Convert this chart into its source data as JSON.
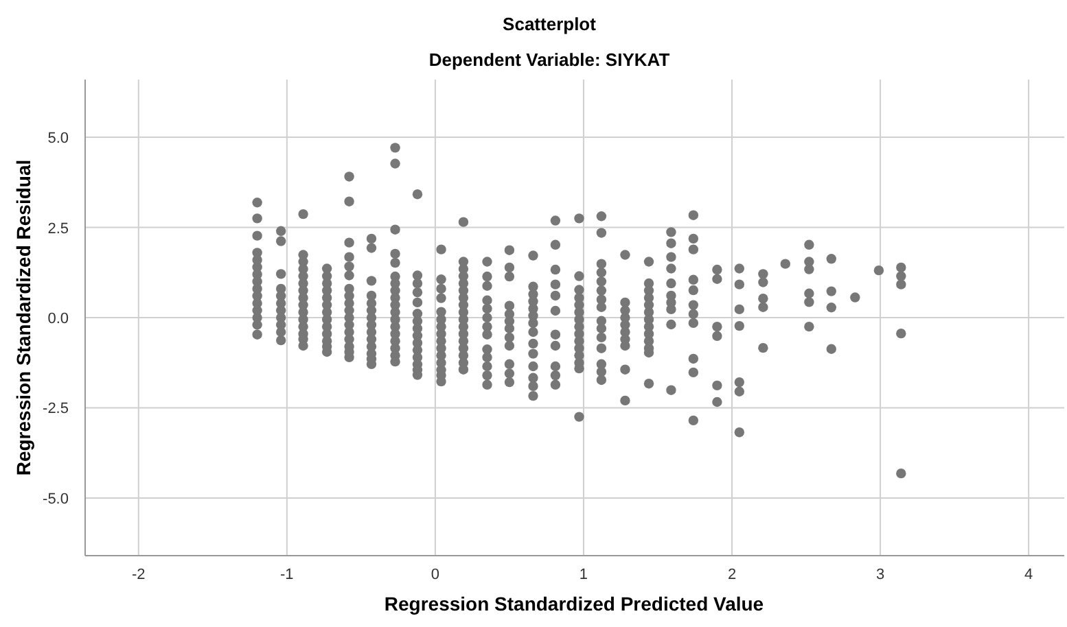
{
  "chart_data": {
    "type": "scatter",
    "title": "Scatterplot",
    "subtitle": "Dependent Variable: SIYKAT",
    "xlabel": "Regression Standardized Predicted Value",
    "ylabel": "Regression Standardized Residual",
    "xlim": [
      -2.36,
      4.24
    ],
    "xticks": [
      -2,
      -1,
      0,
      1,
      2,
      3,
      4
    ],
    "ylim": [
      -6.6,
      6.6
    ],
    "yticks": [
      {
        "value": -5,
        "label": "-5.0"
      },
      {
        "value": -2.5,
        "label": "-2.5"
      },
      {
        "value": 0,
        "label": "0.0"
      },
      {
        "value": 2.5,
        "label": "2.5"
      },
      {
        "value": 5,
        "label": "5.0"
      }
    ],
    "grid": true,
    "marker": "circle",
    "series": [
      {
        "color": "#777777",
        "x": [
          -1.2,
          -1.2,
          -1.2,
          -1.2,
          -1.2,
          -1.2,
          -1.2,
          -1.2,
          -1.2,
          -1.2,
          -1.2,
          -1.2,
          -1.2,
          -1.2,
          -1.2
        ],
        "values": [
          3.19,
          2.75,
          2.27,
          1.8,
          1.6,
          1.4,
          1.2,
          1.0,
          0.8,
          0.6,
          0.4,
          0.2,
          0.0,
          -0.2,
          -0.47
        ]
      },
      {
        "color": "#777777",
        "x": [
          -1.04,
          -1.04,
          -1.04,
          -1.04,
          -1.04,
          -1.04,
          -1.04,
          -1.04,
          -1.04,
          -1.04,
          -1.04
        ],
        "values": [
          2.4,
          2.12,
          1.21,
          0.8,
          0.6,
          0.4,
          0.2,
          0.0,
          -0.2,
          -0.4,
          -0.63
        ]
      },
      {
        "color": "#777777",
        "x": [
          -0.89,
          -0.89,
          -0.89,
          -0.89,
          -0.89,
          -0.89,
          -0.89,
          -0.89,
          -0.89,
          -0.89,
          -0.89,
          -0.89,
          -0.89,
          -0.89,
          -0.89
        ],
        "values": [
          2.87,
          1.74,
          1.55,
          1.35,
          1.15,
          0.95,
          0.75,
          0.55,
          0.35,
          0.15,
          -0.05,
          -0.25,
          -0.45,
          -0.6,
          -0.78
        ]
      },
      {
        "color": "#777777",
        "x": [
          -0.73,
          -0.73,
          -0.73,
          -0.73,
          -0.73,
          -0.73,
          -0.73,
          -0.73,
          -0.73,
          -0.73,
          -0.73,
          -0.73,
          -0.73
        ],
        "values": [
          1.36,
          1.15,
          0.95,
          0.75,
          0.55,
          0.35,
          0.15,
          -0.05,
          -0.25,
          -0.45,
          -0.65,
          -0.8,
          -0.95
        ]
      },
      {
        "color": "#777777",
        "x": [
          -0.58,
          -0.58,
          -0.58,
          -0.58,
          -0.58,
          -0.58,
          -0.58,
          -0.58,
          -0.58,
          -0.58,
          -0.58,
          -0.58,
          -0.58,
          -0.58,
          -0.58,
          -0.58,
          -0.58
        ],
        "values": [
          3.91,
          3.22,
          2.08,
          1.68,
          1.42,
          1.17,
          0.8,
          0.6,
          0.4,
          0.2,
          0.0,
          -0.2,
          -0.4,
          -0.6,
          -0.8,
          -0.95,
          -1.1
        ]
      },
      {
        "color": "#777777",
        "x": [
          -0.43,
          -0.43,
          -0.43,
          -0.43,
          -0.43,
          -0.43,
          -0.43,
          -0.43,
          -0.43,
          -0.43,
          -0.43,
          -0.43,
          -0.43,
          -0.43
        ],
        "values": [
          2.19,
          1.93,
          1.02,
          0.61,
          0.4,
          0.2,
          0.0,
          -0.2,
          -0.4,
          -0.6,
          -0.8,
          -1.0,
          -1.15,
          -1.29
        ]
      },
      {
        "color": "#777777",
        "x": [
          -0.27,
          -0.27,
          -0.27,
          -0.27,
          -0.27,
          -0.27,
          -0.27,
          -0.27,
          -0.27,
          -0.27,
          -0.27,
          -0.27,
          -0.27,
          -0.27,
          -0.27,
          -0.27,
          -0.27,
          -0.27
        ],
        "values": [
          4.71,
          4.27,
          2.44,
          1.77,
          1.52,
          1.14,
          0.95,
          0.75,
          0.55,
          0.35,
          0.15,
          -0.05,
          -0.25,
          -0.45,
          -0.65,
          -0.85,
          -1.05,
          -1.22
        ]
      },
      {
        "color": "#777777",
        "x": [
          -0.12,
          -0.12,
          -0.12,
          -0.12,
          -0.12,
          -0.12,
          -0.12,
          -0.12,
          -0.12,
          -0.12,
          -0.12,
          -0.12,
          -0.12,
          -0.12,
          -0.12
        ],
        "values": [
          3.42,
          1.17,
          0.95,
          0.7,
          0.42,
          0.11,
          -0.1,
          -0.3,
          -0.5,
          -0.7,
          -0.9,
          -1.1,
          -1.3,
          -1.45,
          -1.59
        ]
      },
      {
        "color": "#777777",
        "x": [
          0.04,
          0.04,
          0.04,
          0.04,
          0.04,
          0.04,
          0.04,
          0.04,
          0.04,
          0.04,
          0.04,
          0.04,
          0.04,
          0.04,
          0.04
        ],
        "values": [
          1.89,
          1.06,
          0.8,
          0.54,
          0.16,
          -0.05,
          -0.25,
          -0.45,
          -0.65,
          -0.85,
          -1.05,
          -1.25,
          -1.45,
          -1.6,
          -1.77
        ]
      },
      {
        "color": "#777777",
        "x": [
          0.19,
          0.19,
          0.19,
          0.19,
          0.19,
          0.19,
          0.19,
          0.19,
          0.19,
          0.19,
          0.19,
          0.19,
          0.19,
          0.19,
          0.19,
          0.19,
          0.19
        ],
        "values": [
          2.65,
          1.55,
          1.35,
          1.15,
          0.95,
          0.75,
          0.55,
          0.35,
          0.15,
          -0.05,
          -0.25,
          -0.45,
          -0.65,
          -0.85,
          -1.05,
          -1.25,
          -1.44
        ]
      },
      {
        "color": "#777777",
        "x": [
          0.35,
          0.35,
          0.35,
          0.35,
          0.35,
          0.35,
          0.35,
          0.35,
          0.35,
          0.35,
          0.35,
          0.35,
          0.35
        ],
        "values": [
          1.55,
          1.14,
          0.88,
          0.48,
          0.25,
          0.0,
          -0.25,
          -0.47,
          -0.88,
          -1.1,
          -1.35,
          -1.6,
          -1.86
        ]
      },
      {
        "color": "#777777",
        "x": [
          0.5,
          0.5,
          0.5,
          0.5,
          0.5,
          0.5,
          0.5,
          0.5,
          0.5,
          0.5,
          0.5,
          0.5
        ],
        "values": [
          1.87,
          1.39,
          1.14,
          0.33,
          0.1,
          -0.1,
          -0.3,
          -0.55,
          -0.78,
          -1.29,
          -1.55,
          -1.79
        ]
      },
      {
        "color": "#777777",
        "x": [
          0.66,
          0.66,
          0.66,
          0.66,
          0.66,
          0.66,
          0.66,
          0.66,
          0.66,
          0.66,
          0.66,
          0.66,
          0.66,
          0.66
        ],
        "values": [
          1.72,
          0.86,
          0.65,
          0.45,
          0.25,
          0.05,
          -0.15,
          -0.4,
          -0.72,
          -1.0,
          -1.35,
          -1.67,
          -1.9,
          -2.17
        ]
      },
      {
        "color": "#777777",
        "x": [
          0.81,
          0.81,
          0.81,
          0.81,
          0.81,
          0.81,
          0.81,
          0.81,
          0.81,
          0.81,
          0.81
        ],
        "values": [
          2.69,
          2.02,
          1.33,
          0.92,
          0.61,
          0.19,
          -0.47,
          -0.78,
          -1.35,
          -1.6,
          -1.86
        ]
      },
      {
        "color": "#777777",
        "x": [
          0.97,
          0.97,
          0.97,
          0.97,
          0.97,
          0.97,
          0.97,
          0.97,
          0.97,
          0.97,
          0.97,
          0.97,
          0.97,
          0.97,
          0.97
        ],
        "values": [
          2.75,
          1.15,
          0.77,
          0.55,
          0.35,
          0.15,
          -0.05,
          -0.25,
          -0.45,
          -0.65,
          -0.85,
          -1.05,
          -1.25,
          -1.41,
          -2.75
        ]
      },
      {
        "color": "#777777",
        "x": [
          1.12,
          1.12,
          1.12,
          1.12,
          1.12,
          1.12,
          1.12,
          1.12,
          1.12,
          1.12,
          1.12,
          1.12,
          1.12,
          1.12,
          1.12
        ],
        "values": [
          2.81,
          2.35,
          1.49,
          1.25,
          1.0,
          0.75,
          0.5,
          0.29,
          -0.09,
          -0.3,
          -0.55,
          -0.85,
          -1.29,
          -1.5,
          -1.73
        ]
      },
      {
        "color": "#777777",
        "x": [
          1.28,
          1.28,
          1.28,
          1.28,
          1.28,
          1.28,
          1.28,
          1.28,
          1.28,
          1.28
        ],
        "values": [
          1.74,
          0.42,
          0.2,
          0.0,
          -0.2,
          -0.4,
          -0.6,
          -0.78,
          -1.44,
          -2.3
        ]
      },
      {
        "color": "#777777",
        "x": [
          1.44,
          1.44,
          1.44,
          1.44,
          1.44,
          1.44,
          1.44,
          1.44,
          1.44,
          1.44,
          1.44,
          1.44,
          1.44
        ],
        "values": [
          1.55,
          0.95,
          0.75,
          0.55,
          0.35,
          0.15,
          -0.05,
          -0.25,
          -0.45,
          -0.65,
          -0.85,
          -0.97,
          -1.83
        ]
      },
      {
        "color": "#777777",
        "x": [
          1.59,
          1.59,
          1.59,
          1.59,
          1.59,
          1.59,
          1.59,
          1.59,
          1.59,
          1.59
        ],
        "values": [
          2.37,
          2.06,
          1.68,
          1.36,
          0.95,
          0.61,
          0.42,
          0.23,
          -0.19,
          -2.01
        ]
      },
      {
        "color": "#777777",
        "x": [
          1.74,
          1.74,
          1.74,
          1.74,
          1.74,
          1.74,
          1.74,
          1.74,
          1.74,
          1.74,
          1.74
        ],
        "values": [
          2.84,
          2.19,
          1.89,
          1.05,
          0.76,
          0.35,
          0.1,
          -0.15,
          -1.14,
          -1.52,
          -2.85
        ]
      },
      {
        "color": "#777777",
        "x": [
          1.9,
          1.9,
          1.9,
          1.9,
          1.9,
          1.9
        ],
        "values": [
          1.33,
          1.07,
          -0.25,
          -0.51,
          -1.88,
          -2.34
        ]
      },
      {
        "color": "#777777",
        "x": [
          2.05,
          2.05,
          2.05,
          2.05,
          2.05,
          2.05,
          2.05
        ],
        "values": [
          1.36,
          0.92,
          0.23,
          -0.23,
          -1.79,
          -2.05,
          -3.18
        ]
      },
      {
        "color": "#777777",
        "x": [
          2.21,
          2.21,
          2.21,
          2.21,
          2.21
        ],
        "values": [
          1.21,
          0.98,
          0.53,
          0.29,
          -0.84
        ]
      },
      {
        "color": "#777777",
        "x": [
          2.36
        ],
        "values": [
          1.49
        ]
      },
      {
        "color": "#777777",
        "x": [
          2.52,
          2.52,
          2.52,
          2.52,
          2.52,
          2.52
        ],
        "values": [
          2.02,
          1.55,
          1.34,
          0.67,
          0.43,
          -0.25
        ]
      },
      {
        "color": "#777777",
        "x": [
          2.67,
          2.67,
          2.67,
          2.67
        ],
        "values": [
          1.63,
          0.73,
          0.28,
          -0.87
        ]
      },
      {
        "color": "#777777",
        "x": [
          2.83
        ],
        "values": [
          0.56
        ]
      },
      {
        "color": "#777777",
        "x": [
          2.99
        ],
        "values": [
          1.31
        ]
      },
      {
        "color": "#777777",
        "x": [
          3.14,
          3.14,
          3.14,
          3.14,
          3.14
        ],
        "values": [
          1.39,
          1.15,
          0.92,
          -0.44,
          -4.32
        ]
      }
    ]
  }
}
